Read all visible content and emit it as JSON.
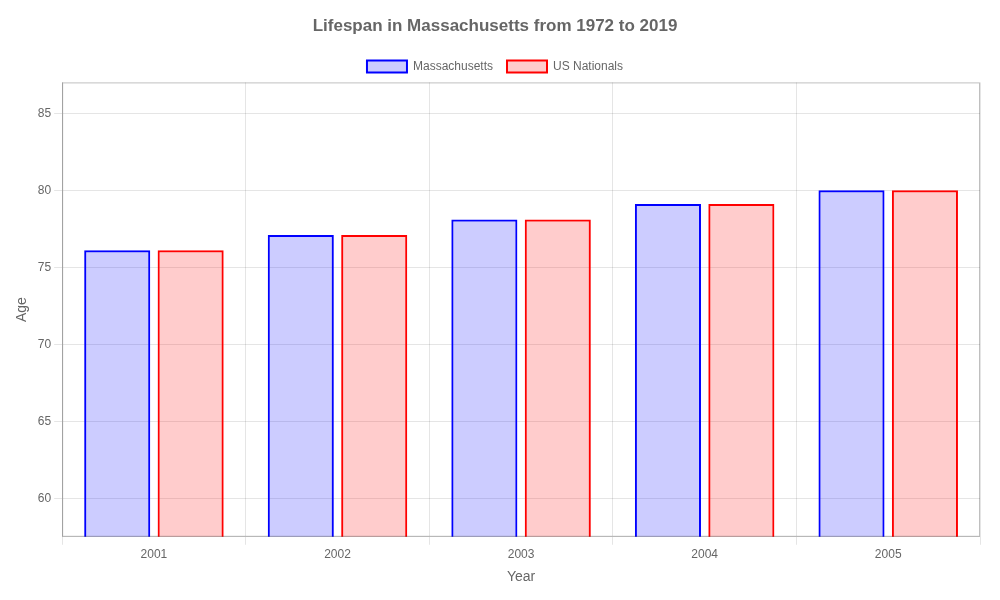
{
  "chart_data": {
    "type": "bar",
    "title": "Lifespan in Massachusetts from 1972 to 2019",
    "xlabel": "Year",
    "ylabel": "Age",
    "categories": [
      "2001",
      "2002",
      "2003",
      "2004",
      "2005"
    ],
    "series": [
      {
        "name": "Massachusetts",
        "color": "#0000ff",
        "values": [
          76.1,
          77.1,
          78.1,
          79.1,
          80.0
        ]
      },
      {
        "name": "US Nationals",
        "color": "#ff0000",
        "values": [
          76.1,
          77.1,
          78.1,
          79.1,
          80.0
        ]
      }
    ],
    "ylim": [
      57.5,
      87
    ],
    "yticks": [
      60,
      65,
      70,
      75,
      80,
      85
    ],
    "grid": true,
    "legend": "top"
  }
}
